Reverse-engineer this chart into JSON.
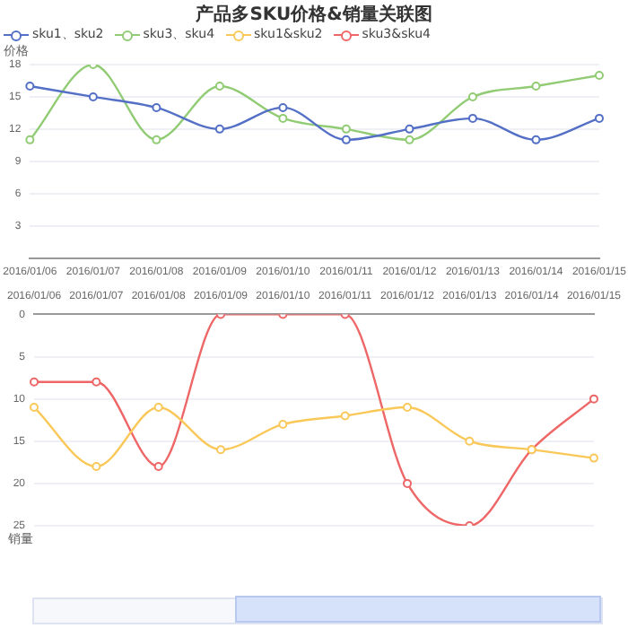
{
  "chart_data": [
    {
      "type": "line",
      "title": "产品多SKU价格&销量关联图",
      "ylabel": "价格",
      "categories": [
        "2016/01/06",
        "2016/01/07",
        "2016/01/08",
        "2016/01/09",
        "2016/01/10",
        "2016/01/11",
        "2016/01/12",
        "2016/01/13",
        "2016/01/14",
        "2016/01/15"
      ],
      "series": [
        {
          "name": "sku1、sku2",
          "color": "#5470c6",
          "values": [
            16,
            15,
            14,
            12,
            14,
            11,
            12,
            13,
            11,
            13
          ]
        },
        {
          "name": "sku3、sku4",
          "color": "#91cc75",
          "values": [
            11,
            18,
            11,
            16,
            13,
            12,
            11,
            15,
            16,
            17
          ]
        }
      ],
      "ylim": [
        0,
        18
      ],
      "yticks": [
        3,
        6,
        9,
        12,
        15,
        18
      ],
      "grid": "y",
      "legend": "top left",
      "marker": "circle",
      "line_style": "solid"
    },
    {
      "type": "line",
      "ylabel": "销量",
      "categories": [
        "2016/01/06",
        "2016/01/07",
        "2016/01/08",
        "2016/01/09",
        "2016/01/10",
        "2016/01/11",
        "2016/01/12",
        "2016/01/13",
        "2016/01/14",
        "2016/01/15"
      ],
      "series": [
        {
          "name": "sku1&sku2",
          "color": "#fac858",
          "values": [
            11,
            18,
            11,
            16,
            13,
            12,
            11,
            15,
            16,
            17
          ]
        },
        {
          "name": "sku3&sku4",
          "color": "#ee6666",
          "values": [
            8,
            8,
            18,
            0,
            0,
            0,
            20,
            25,
            16,
            10
          ]
        }
      ],
      "ylim": [
        25,
        0
      ],
      "yticks": [
        0,
        5,
        10,
        15,
        20,
        25
      ],
      "grid": "y",
      "legend": "top left",
      "marker": "circle",
      "line_style": "solid"
    }
  ]
}
